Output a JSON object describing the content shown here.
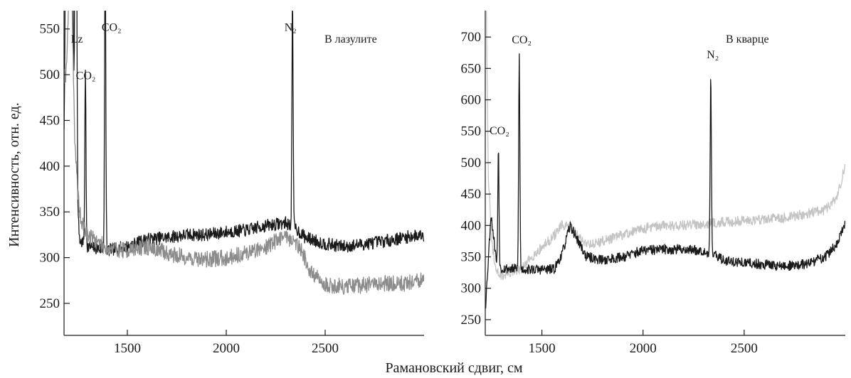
{
  "figure": {
    "ylabel": "Интенсивность, отн. ед.",
    "xlabel": "Рамановский сдвиг, см"
  },
  "chart_data": [
    {
      "type": "line",
      "panel_label": "В лазулите",
      "xlim": [
        1180,
        3000
      ],
      "ylim": [
        215,
        570
      ],
      "xticks": [
        1500,
        2000,
        2500
      ],
      "yticks": [
        250,
        300,
        350,
        400,
        450,
        500,
        550
      ],
      "annotations": [
        {
          "label": "Lz",
          "x": 1245,
          "y": 535
        },
        {
          "label": "CO₂",
          "x": 1290,
          "y": 495
        },
        {
          "label": "CO₂",
          "x": 1420,
          "y": 548
        },
        {
          "label": "N₂",
          "x": 2325,
          "y": 548
        }
      ],
      "series": [
        {
          "color": "#1a1a1a",
          "base": [
            [
              1190,
              420
            ],
            [
              1215,
              450
            ],
            [
              1235,
              460
            ],
            [
              1250,
              345
            ],
            [
              1260,
              318
            ],
            [
              1300,
              312
            ],
            [
              1400,
              308
            ],
            [
              1500,
              312
            ],
            [
              1600,
              320
            ],
            [
              1700,
              322
            ],
            [
              1800,
              325
            ],
            [
              1900,
              325
            ],
            [
              2000,
              328
            ],
            [
              2100,
              330
            ],
            [
              2200,
              335
            ],
            [
              2300,
              338
            ],
            [
              2350,
              332
            ],
            [
              2400,
              322
            ],
            [
              2500,
              315
            ],
            [
              2600,
              312
            ],
            [
              2700,
              315
            ],
            [
              2800,
              318
            ],
            [
              2900,
              322
            ],
            [
              2990,
              325
            ]
          ],
          "noise": 7,
          "peaks": [
            [
              1200,
              1400,
              7
            ],
            [
              1218,
              500,
              5
            ],
            [
              1240,
              480,
              4
            ],
            [
              1288,
              190,
              3
            ],
            [
              1388,
              330,
              3
            ],
            [
              2335,
              250,
              3
            ]
          ],
          "seed": 7
        },
        {
          "color": "#8c8c8c",
          "base": [
            [
              1190,
              500
            ],
            [
              1215,
              640
            ],
            [
              1235,
              420
            ],
            [
              1250,
              370
            ],
            [
              1265,
              340
            ],
            [
              1300,
              325
            ],
            [
              1400,
              310
            ],
            [
              1500,
              308
            ],
            [
              1600,
              312
            ],
            [
              1700,
              305
            ],
            [
              1800,
              300
            ],
            [
              1900,
              298
            ],
            [
              2000,
              300
            ],
            [
              2100,
              305
            ],
            [
              2200,
              312
            ],
            [
              2300,
              325
            ],
            [
              2380,
              310
            ],
            [
              2420,
              285
            ],
            [
              2500,
              270
            ],
            [
              2600,
              268
            ],
            [
              2700,
              270
            ],
            [
              2800,
              272
            ],
            [
              2900,
              272
            ],
            [
              2990,
              275
            ]
          ],
          "noise": 9,
          "peaks": [],
          "seed": 19
        }
      ]
    },
    {
      "type": "line",
      "panel_label": "В кварце",
      "xlim": [
        1220,
        3000
      ],
      "ylim": [
        225,
        742
      ],
      "xticks": [
        1500,
        2000,
        2500
      ],
      "yticks": [
        250,
        300,
        350,
        400,
        450,
        500,
        550,
        600,
        650,
        700
      ],
      "annotations": [
        {
          "label": "CO₂",
          "x": 1290,
          "y": 545
        },
        {
          "label": "CO₂",
          "x": 1400,
          "y": 690
        },
        {
          "label": "N₂",
          "x": 2345,
          "y": 666
        }
      ],
      "series": [
        {
          "color": "#c4c4c4",
          "base": [
            [
              1225,
              760
            ],
            [
              1235,
              480
            ],
            [
              1250,
              380
            ],
            [
              1270,
              330
            ],
            [
              1300,
              320
            ],
            [
              1400,
              330
            ],
            [
              1450,
              350
            ],
            [
              1500,
              365
            ],
            [
              1550,
              380
            ],
            [
              1600,
              400
            ],
            [
              1650,
              395
            ],
            [
              1700,
              375
            ],
            [
              1750,
              370
            ],
            [
              1800,
              375
            ],
            [
              1900,
              385
            ],
            [
              2000,
              395
            ],
            [
              2100,
              400
            ],
            [
              2200,
              400
            ],
            [
              2300,
              403
            ],
            [
              2400,
              405
            ],
            [
              2500,
              408
            ],
            [
              2600,
              410
            ],
            [
              2700,
              412
            ],
            [
              2800,
              418
            ],
            [
              2900,
              425
            ],
            [
              2960,
              445
            ],
            [
              2995,
              490
            ]
          ],
          "noise": 8,
          "peaks": [],
          "seed": 31
        },
        {
          "color": "#1a1a1a",
          "base": [
            [
              1222,
              275
            ],
            [
              1235,
              345
            ],
            [
              1248,
              418
            ],
            [
              1262,
              380
            ],
            [
              1280,
              330
            ],
            [
              1300,
              332
            ],
            [
              1400,
              330
            ],
            [
              1500,
              330
            ],
            [
              1560,
              330
            ],
            [
              1600,
              355
            ],
            [
              1640,
              400
            ],
            [
              1680,
              375
            ],
            [
              1720,
              350
            ],
            [
              1800,
              345
            ],
            [
              1900,
              350
            ],
            [
              2000,
              360
            ],
            [
              2100,
              362
            ],
            [
              2200,
              362
            ],
            [
              2300,
              360
            ],
            [
              2400,
              345
            ],
            [
              2500,
              340
            ],
            [
              2600,
              338
            ],
            [
              2700,
              335
            ],
            [
              2800,
              338
            ],
            [
              2900,
              350
            ],
            [
              2960,
              370
            ],
            [
              2995,
              400
            ]
          ],
          "noise": 8,
          "peaks": [
            [
              1285,
              195,
              3
            ],
            [
              1388,
              340,
              3
            ],
            [
              2335,
              285,
              3
            ]
          ],
          "seed": 53
        }
      ]
    }
  ]
}
